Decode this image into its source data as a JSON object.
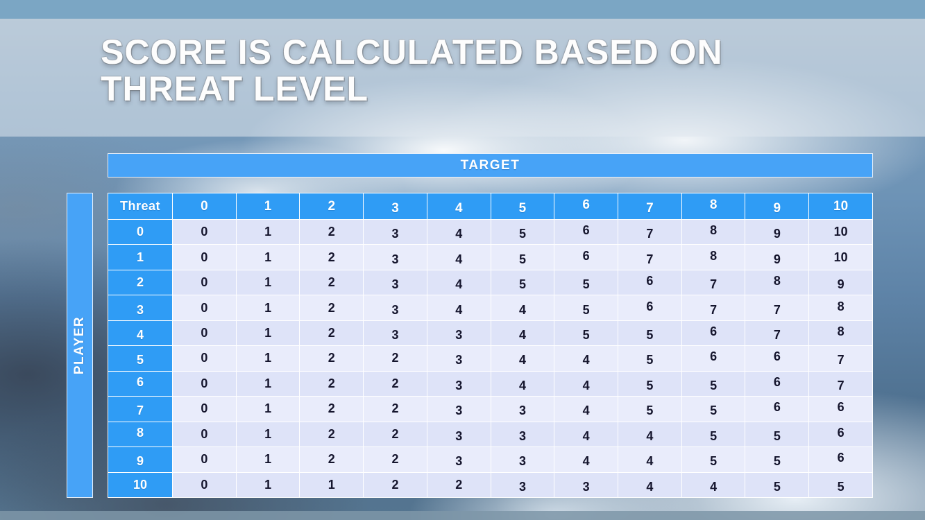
{
  "slide": {
    "title_line1": "SCORE IS CALCULATED BASED ON",
    "title_line2": "THREAT LEVEL"
  },
  "table": {
    "target_label": "TARGET",
    "player_label": "PLAYER",
    "corner_label": "Threat",
    "column_headers": [
      "0",
      "1",
      "2",
      "3",
      "4",
      "5",
      "6",
      "7",
      "8",
      "9",
      "10"
    ],
    "rows": [
      {
        "threat": "0",
        "values": [
          "0",
          "1",
          "2",
          "3",
          "4",
          "5",
          "6",
          "7",
          "8",
          "9",
          "10"
        ]
      },
      {
        "threat": "1",
        "values": [
          "0",
          "1",
          "2",
          "3",
          "4",
          "5",
          "6",
          "7",
          "8",
          "9",
          "10"
        ]
      },
      {
        "threat": "2",
        "values": [
          "0",
          "1",
          "2",
          "3",
          "4",
          "5",
          "5",
          "6",
          "7",
          "8",
          "9"
        ]
      },
      {
        "threat": "3",
        "values": [
          "0",
          "1",
          "2",
          "3",
          "4",
          "4",
          "5",
          "6",
          "7",
          "7",
          "8"
        ]
      },
      {
        "threat": "4",
        "values": [
          "0",
          "1",
          "2",
          "3",
          "3",
          "4",
          "5",
          "5",
          "6",
          "7",
          "8"
        ]
      },
      {
        "threat": "5",
        "values": [
          "0",
          "1",
          "2",
          "2",
          "3",
          "4",
          "4",
          "5",
          "6",
          "6",
          "7"
        ]
      },
      {
        "threat": "6",
        "values": [
          "0",
          "1",
          "2",
          "2",
          "3",
          "4",
          "4",
          "5",
          "5",
          "6",
          "7"
        ]
      },
      {
        "threat": "7",
        "values": [
          "0",
          "1",
          "2",
          "2",
          "3",
          "3",
          "4",
          "5",
          "5",
          "6",
          "6"
        ]
      },
      {
        "threat": "8",
        "values": [
          "0",
          "1",
          "2",
          "2",
          "3",
          "3",
          "4",
          "4",
          "5",
          "5",
          "6"
        ]
      },
      {
        "threat": "9",
        "values": [
          "0",
          "1",
          "2",
          "2",
          "3",
          "3",
          "4",
          "4",
          "5",
          "5",
          "6"
        ]
      },
      {
        "threat": "10",
        "values": [
          "0",
          "1",
          "1",
          "2",
          "2",
          "3",
          "3",
          "4",
          "4",
          "5",
          "5"
        ]
      }
    ]
  },
  "colors": {
    "header_blue": "#2f9cf5",
    "bar_blue": "#47a3f7",
    "row_band_dark": "#dee3f8",
    "row_band_light": "#e9ecfb",
    "top_strip": "#7ba6c4",
    "bottom_strip": "#7e96a8"
  }
}
